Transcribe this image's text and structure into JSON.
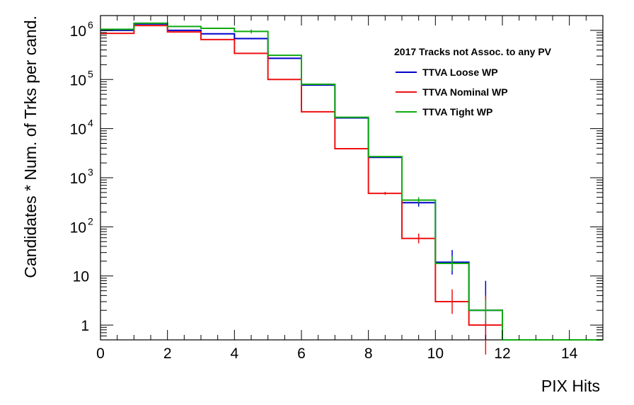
{
  "chart_data": {
    "type": "line",
    "xlabel": "PIX Hits",
    "ylabel": "Candidates * Num. of Trks per cand.",
    "xlim": [
      0,
      15
    ],
    "ylim": [
      0.5,
      2000000
    ],
    "yscale": "log",
    "grid": false,
    "legend_placement": "top-right",
    "legend_title": "2017 Tracks not Assoc. to any PV",
    "x_bin_edges": [
      0,
      1,
      2,
      3,
      4,
      5,
      6,
      7,
      8,
      9,
      10,
      11,
      12,
      13,
      14,
      15
    ],
    "x_ticks": [
      0,
      2,
      4,
      6,
      8,
      10,
      12,
      14
    ],
    "x_tick_labels": [
      "0",
      "2",
      "4",
      "6",
      "8",
      "10",
      "12",
      "14"
    ],
    "y_ticks": [
      {
        "value": 1,
        "base": "1",
        "exp": ""
      },
      {
        "value": 10,
        "base": "10",
        "exp": ""
      },
      {
        "value": 100,
        "base": "10",
        "exp": "2"
      },
      {
        "value": 1000,
        "base": "10",
        "exp": "3"
      },
      {
        "value": 10000,
        "base": "10",
        "exp": "4"
      },
      {
        "value": 100000,
        "base": "10",
        "exp": "5"
      },
      {
        "value": 1000000,
        "base": "10",
        "exp": "6"
      }
    ],
    "series": [
      {
        "name": "TTVA Loose WP",
        "color": "#0000cc",
        "values": [
          1000000,
          1350000,
          1000000,
          850000,
          680000,
          270000,
          77000,
          16500,
          2600,
          310,
          19,
          2,
          0.5,
          0.5,
          0.5
        ],
        "errors": [
          0,
          0,
          0,
          0,
          0,
          0,
          0,
          0,
          0,
          0.08,
          0.25,
          0.6,
          0,
          0,
          0
        ]
      },
      {
        "name": "TTVA Nominal WP",
        "color": "#ee1111",
        "values": [
          870000,
          1250000,
          930000,
          650000,
          340000,
          100000,
          22000,
          3900,
          480,
          58,
          3,
          1,
          0.5,
          0.5,
          0.5
        ],
        "errors": [
          0,
          0,
          0,
          0,
          0,
          0,
          0,
          0,
          0.03,
          0.1,
          0.25,
          0.6,
          0,
          0,
          0
        ]
      },
      {
        "name": "TTVA Tight WP",
        "color": "#11aa11",
        "values": [
          1050000,
          1400000,
          1200000,
          1100000,
          950000,
          310000,
          80000,
          17000,
          2700,
          350,
          18,
          2,
          0.5,
          0.5,
          0.5
        ],
        "errors": [
          0,
          0,
          0,
          0,
          0.04,
          0,
          0,
          0,
          0,
          0.06,
          0.15,
          0.22,
          0,
          0,
          0
        ]
      }
    ]
  }
}
